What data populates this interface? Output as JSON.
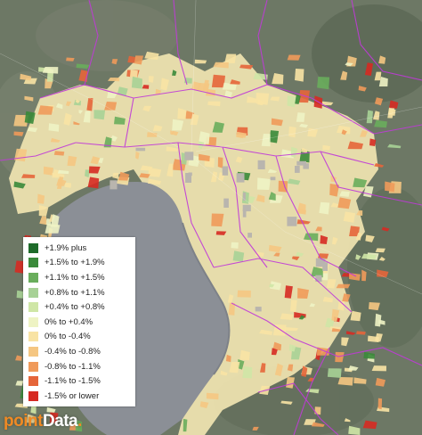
{
  "brand": {
    "prefix": "point",
    "suffix": "Data",
    "dot": "."
  },
  "colors": {
    "water": "#8b8f96",
    "land": "#6d7865",
    "urban_grey": "#b9b5ae",
    "boundary": "#c03ad8"
  },
  "legend": {
    "items": [
      {
        "label": "+1.9% plus",
        "color": "#1e6b2a"
      },
      {
        "label": "+1.5% to +1.9%",
        "color": "#3a8a3a"
      },
      {
        "label": "+1.1% to +1.5%",
        "color": "#69ad5c"
      },
      {
        "label": "+0.8% to +1.1%",
        "color": "#a7d196"
      },
      {
        "label": "+0.4% to +0.8%",
        "color": "#cfe6a6"
      },
      {
        "label": "0% to +0.4%",
        "color": "#eef3c4"
      },
      {
        "label": "0% to -0.4%",
        "color": "#f8e3a4"
      },
      {
        "label": "-0.4% to -0.8%",
        "color": "#f5c682"
      },
      {
        "label": "-0.8% to -1.1%",
        "color": "#f09a5a"
      },
      {
        "label": "-1.1% to -1.5%",
        "color": "#e5653a"
      },
      {
        "label": "-1.5% or lower",
        "color": "#d62a22"
      }
    ]
  }
}
